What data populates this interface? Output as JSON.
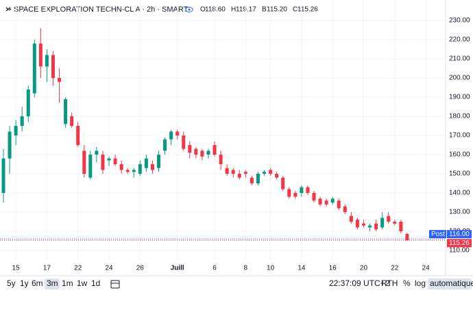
{
  "header": {
    "title": "SPACE EXPLORATION TECHN-CL A · 2h · SMART",
    "ohlc": [
      {
        "letter": "O",
        "value": "118.60"
      },
      {
        "letter": "H",
        "value": "119.17"
      },
      {
        "letter": "B",
        "value": "115.20"
      },
      {
        "letter": "C",
        "value": "115.26"
      }
    ]
  },
  "chart_data": {
    "type": "candlestick",
    "categories": [
      null,
      null,
      "15",
      null,
      null,
      null,
      null,
      "17",
      null,
      null,
      null,
      null,
      "22",
      null,
      null,
      null,
      null,
      "24",
      null,
      null,
      null,
      null,
      "26",
      null,
      null,
      null,
      null,
      null,
      "Juill",
      null,
      null,
      null,
      null,
      null,
      "6",
      null,
      null,
      null,
      null,
      "8",
      null,
      null,
      null,
      "10",
      null,
      null,
      null,
      null,
      "14",
      null,
      null,
      null,
      null,
      "16",
      null,
      null,
      null,
      null,
      "20",
      null,
      null,
      null,
      null,
      "22",
      null,
      null,
      null,
      null,
      "24",
      null,
      null
    ],
    "open": [
      140,
      158,
      170,
      175,
      180,
      192,
      218,
      206,
      212,
      200,
      176,
      180,
      175,
      162,
      148,
      160,
      160,
      157,
      158,
      155,
      152,
      151,
      150,
      153,
      155,
      153,
      162,
      168,
      172,
      170,
      165,
      163,
      162,
      160,
      165,
      160,
      153,
      152,
      150,
      151,
      148,
      145,
      150,
      152,
      150,
      148,
      142,
      140,
      140,
      143,
      140,
      137,
      136,
      135,
      136,
      133,
      128,
      126,
      124,
      122,
      124,
      122,
      128,
      125,
      125,
      118.6,
      null,
      null,
      null,
      null,
      null
    ],
    "high": [
      163,
      175,
      178,
      185,
      196,
      220,
      226,
      215,
      214,
      205,
      190,
      182,
      177,
      165,
      162,
      164,
      162,
      159,
      160,
      157,
      153,
      153,
      157,
      160,
      157,
      162,
      169,
      173,
      173,
      172,
      167,
      164,
      163,
      163,
      167,
      162,
      155,
      153,
      152,
      152,
      149,
      151,
      152,
      153,
      151,
      149,
      143,
      141,
      144,
      144,
      141,
      138,
      137,
      138,
      137,
      134,
      130,
      127,
      126,
      124,
      126,
      130,
      130,
      126,
      126,
      119.17,
      null,
      null,
      null,
      null,
      null
    ],
    "low": [
      135,
      150,
      165,
      172,
      177,
      190,
      200,
      198,
      196,
      187,
      174,
      174,
      164,
      148,
      147,
      156,
      150,
      154,
      154,
      150,
      150,
      148,
      149,
      151,
      150,
      151,
      160,
      165,
      168,
      162,
      158,
      158,
      157,
      158,
      159,
      152,
      149,
      148,
      147,
      148,
      144,
      144,
      149,
      149,
      147,
      141,
      137,
      137,
      138,
      139,
      135,
      133,
      133,
      134,
      131,
      129,
      124,
      121,
      122,
      120,
      120,
      121,
      124,
      123,
      119,
      115.2,
      null,
      null,
      null,
      null,
      null
    ],
    "close": [
      158,
      172,
      175,
      180,
      194,
      218,
      206,
      212,
      200,
      198,
      189,
      175,
      165,
      150,
      160,
      162,
      152,
      158,
      155,
      152,
      151,
      152,
      155,
      158,
      152,
      160,
      168,
      172,
      170,
      163,
      161,
      160,
      159,
      162,
      160,
      155,
      150,
      150,
      148,
      150,
      145,
      150,
      151,
      150,
      148,
      142,
      138,
      138,
      143,
      140,
      136,
      134,
      134,
      137,
      132,
      130,
      125,
      122,
      123,
      123,
      121,
      127,
      125,
      124,
      120,
      115.26,
      null,
      null,
      null,
      null,
      null
    ],
    "up_color": "#089981",
    "down_color": "#f23645",
    "ylim": [
      107,
      234
    ],
    "yticks": [
      {
        "value": 110,
        "label": "110.00"
      },
      {
        "value": 120,
        "label": "120.00"
      },
      {
        "value": 130,
        "label": "130.00"
      },
      {
        "value": 140,
        "label": "140.00"
      },
      {
        "value": 150,
        "label": "150.00"
      },
      {
        "value": 160,
        "label": "160.00"
      },
      {
        "value": 170,
        "label": "170.00"
      },
      {
        "value": 180,
        "label": "180.00"
      },
      {
        "value": 190,
        "label": "190.00"
      },
      {
        "value": 200,
        "label": "200.00"
      },
      {
        "value": 210,
        "label": "210.00"
      },
      {
        "value": 220,
        "label": "220.00"
      },
      {
        "value": 230,
        "label": "230.00"
      }
    ],
    "grid": true,
    "price_lines": [
      {
        "name": "Post",
        "value": 116,
        "label": "116.00",
        "color": "#2962ff"
      },
      {
        "value": 115.26,
        "label": "115.26",
        "color": "#f23645"
      }
    ]
  },
  "toolbar": {
    "ranges": [
      "5y",
      "1y",
      "6m",
      "3m",
      "1m",
      "1w",
      "1d"
    ],
    "time": "22:37:09 UTC+2",
    "session": "RTH",
    "percent": "%",
    "log": "log",
    "auto": "automatique"
  }
}
